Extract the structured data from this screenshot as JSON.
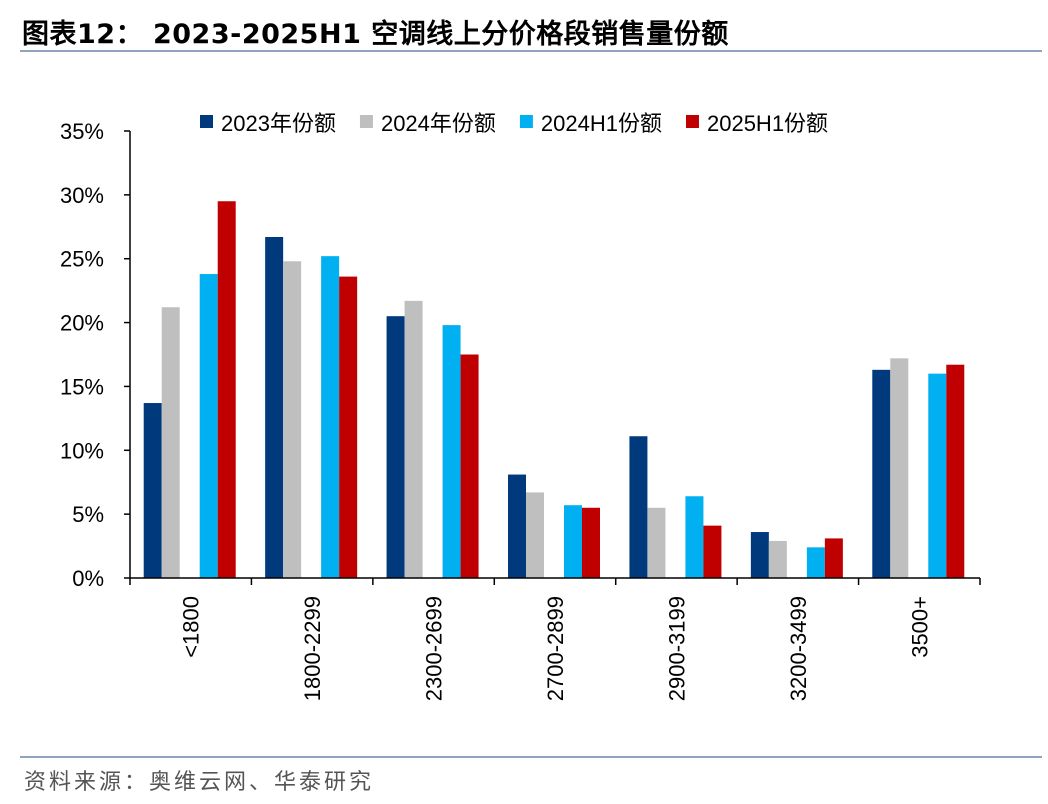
{
  "header": {
    "title": "图表12：  2023-2025H1 空调线上分价格段销售量份额"
  },
  "source": "资料来源：奥维云网、华泰研究",
  "chart_data": {
    "type": "bar",
    "categories": [
      "<1800",
      "1800-2299",
      "2300-2699",
      "2700-2899",
      "2900-3199",
      "3200-3499",
      "3500+"
    ],
    "series": [
      {
        "name": "2023年份额",
        "color": "#003a7d",
        "values": [
          13.7,
          26.7,
          20.5,
          8.1,
          11.1,
          3.6,
          16.3
        ]
      },
      {
        "name": "2024年份额",
        "color": "#bfbfbf",
        "values": [
          21.2,
          24.8,
          21.7,
          6.7,
          5.5,
          2.9,
          17.2
        ]
      },
      {
        "name": "2024H1份额",
        "color": "#00b0f0",
        "values": [
          23.8,
          25.2,
          19.8,
          5.7,
          6.4,
          2.4,
          16.0
        ]
      },
      {
        "name": "2025H1份额",
        "color": "#c00000",
        "values": [
          29.5,
          23.6,
          17.5,
          5.5,
          4.1,
          3.1,
          16.7
        ]
      }
    ],
    "yticks": [
      "0%",
      "5%",
      "10%",
      "15%",
      "20%",
      "25%",
      "30%",
      "35%"
    ],
    "ylim": [
      0,
      35
    ],
    "unit": "%",
    "legend_position": "top",
    "grid": false
  }
}
